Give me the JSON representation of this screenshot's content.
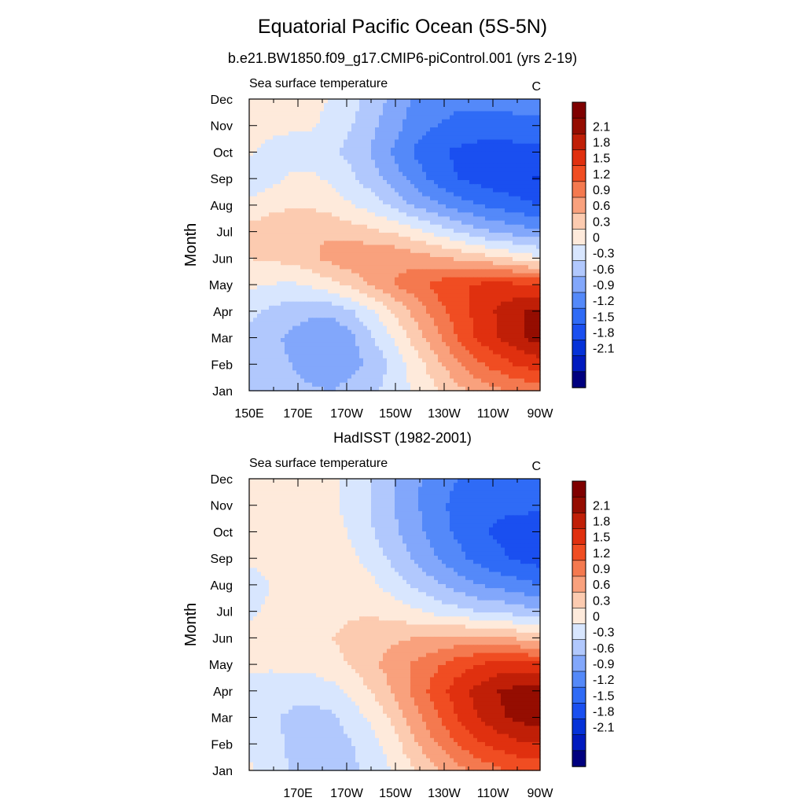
{
  "figure": {
    "title": "Equatorial Pacific Ocean (5S-5N)"
  },
  "palette": [
    "#00007f",
    "#001bbf",
    "#0532d8",
    "#1a4ff0",
    "#2f6bf6",
    "#5489f9",
    "#82a7fb",
    "#b1c8fd",
    "#d8e6fe",
    "#feeadb",
    "#fccbb0",
    "#f9a17d",
    "#f4794f",
    "#f04d22",
    "#e0300f",
    "#c01f07",
    "#950d01",
    "#7f0000"
  ],
  "chart_data": [
    {
      "type": "heatmap",
      "panel_title": "b.e21.BW1850.f09_g17.CMIP6-piControl.001 (yrs 2-19)",
      "left_string": "Sea surface temperature",
      "right_string": "C",
      "ylabel": "Month",
      "x_ticks": [
        "150E",
        "170E",
        "170W",
        "150W",
        "130W",
        "110W",
        "90W"
      ],
      "y_ticks": [
        "Jan",
        "Feb",
        "Mar",
        "Apr",
        "May",
        "Jun",
        "Jul",
        "Aug",
        "Sep",
        "Oct",
        "Nov",
        "Dec"
      ],
      "colorbar_labels": [
        "2.1",
        "1.8",
        "1.5",
        "1.2",
        "0.9",
        "0.6",
        "0.3",
        "0",
        "-0.3",
        "-0.6",
        "-0.9",
        "-1.2",
        "-1.5",
        "-1.8",
        "-2.1"
      ],
      "x_range": [
        "150E",
        "90W"
      ],
      "y_range": [
        "Jan",
        "Dec"
      ],
      "grid": [
        [
          -0.4,
          -0.5,
          -0.5,
          -0.55,
          -0.6,
          -0.45,
          -0.35,
          -0.15,
          0.05,
          0.25,
          0.5,
          0.7,
          0.85,
          0.95,
          1.05
        ],
        [
          -0.4,
          -0.5,
          -0.6,
          -0.75,
          -0.85,
          -0.7,
          -0.5,
          -0.2,
          0.15,
          0.5,
          0.85,
          1.15,
          1.35,
          1.55,
          1.65
        ],
        [
          -0.45,
          -0.55,
          -0.65,
          -0.85,
          -0.9,
          -0.65,
          -0.3,
          0.05,
          0.45,
          0.8,
          1.2,
          1.55,
          1.8,
          2.05,
          2.25
        ],
        [
          -0.2,
          -0.35,
          -0.45,
          -0.5,
          -0.5,
          -0.3,
          0.0,
          0.35,
          0.7,
          1.05,
          1.35,
          1.6,
          1.85,
          2.05,
          2.2
        ],
        [
          0.05,
          0.0,
          -0.05,
          0.05,
          0.2,
          0.4,
          0.65,
          0.9,
          1.1,
          1.3,
          1.45,
          1.55,
          1.6,
          1.55,
          1.5
        ],
        [
          0.3,
          0.35,
          0.4,
          0.55,
          0.7,
          0.85,
          0.9,
          0.85,
          0.75,
          0.65,
          0.55,
          0.45,
          0.35,
          0.2,
          0.05
        ],
        [
          0.4,
          0.5,
          0.6,
          0.6,
          0.55,
          0.45,
          0.35,
          0.25,
          0.1,
          -0.1,
          -0.3,
          -0.5,
          -0.65,
          -0.75,
          -0.85
        ],
        [
          0.1,
          0.2,
          0.25,
          0.25,
          0.15,
          0.0,
          -0.15,
          -0.4,
          -0.65,
          -0.85,
          -1.05,
          -1.2,
          -1.3,
          -1.4,
          -1.5
        ],
        [
          -0.3,
          -0.1,
          0.05,
          0.05,
          -0.05,
          -0.25,
          -0.5,
          -0.75,
          -1.05,
          -1.3,
          -1.5,
          -1.6,
          -1.7,
          -1.75,
          -1.85
        ],
        [
          0.05,
          -0.1,
          -0.15,
          -0.15,
          -0.25,
          -0.4,
          -0.65,
          -0.95,
          -1.25,
          -1.45,
          -1.55,
          -1.6,
          -1.65,
          -1.6,
          -1.6
        ],
        [
          0.1,
          0.1,
          0.05,
          0.05,
          -0.15,
          -0.3,
          -0.55,
          -0.8,
          -1.05,
          -1.2,
          -1.3,
          -1.35,
          -1.35,
          -1.3,
          -1.3
        ],
        [
          0.1,
          0.15,
          0.15,
          0.15,
          -0.05,
          -0.2,
          -0.45,
          -0.7,
          -0.95,
          -1.05,
          -1.1,
          -1.1,
          -1.1,
          -1.05,
          -1.0
        ]
      ]
    },
    {
      "type": "heatmap",
      "panel_title": "HadISST (1982-2001)",
      "left_string": "Sea surface temperature",
      "right_string": "C",
      "ylabel": "Month",
      "x_ticks": [
        "170E",
        "170W",
        "150W",
        "130W",
        "110W",
        "90W"
      ],
      "y_ticks": [
        "Jan",
        "Feb",
        "Mar",
        "Apr",
        "May",
        "Jun",
        "Jul",
        "Aug",
        "Sep",
        "Oct",
        "Nov",
        "Dec"
      ],
      "colorbar_labels": [
        "2.1",
        "1.8",
        "1.5",
        "1.2",
        "0.9",
        "0.6",
        "0.3",
        "0",
        "-0.3",
        "-0.6",
        "-0.9",
        "-1.2",
        "-1.5",
        "-1.8",
        "-2.1"
      ],
      "x_range": [
        "150E",
        "90W"
      ],
      "y_range": [
        "Jan",
        "Dec"
      ],
      "grid": [
        [
          0.05,
          -0.2,
          -0.3,
          -0.4,
          -0.45,
          -0.35,
          -0.2,
          0.05,
          0.3,
          0.55,
          0.8,
          1.0,
          1.15,
          1.25,
          1.3
        ],
        [
          -0.05,
          -0.2,
          -0.35,
          -0.45,
          -0.45,
          -0.3,
          -0.1,
          0.2,
          0.55,
          0.9,
          1.2,
          1.45,
          1.6,
          1.75,
          1.8
        ],
        [
          -0.1,
          -0.25,
          -0.35,
          -0.4,
          -0.35,
          -0.15,
          0.1,
          0.4,
          0.8,
          1.15,
          1.5,
          1.8,
          2.05,
          2.2,
          2.25
        ],
        [
          -0.1,
          -0.15,
          -0.2,
          -0.2,
          -0.1,
          0.1,
          0.35,
          0.65,
          1.0,
          1.35,
          1.65,
          1.9,
          2.1,
          2.2,
          2.2
        ],
        [
          0.05,
          0.05,
          0.1,
          0.1,
          0.2,
          0.35,
          0.55,
          0.75,
          0.95,
          1.15,
          1.35,
          1.5,
          1.6,
          1.6,
          1.55
        ],
        [
          0.05,
          0.15,
          0.2,
          0.25,
          0.3,
          0.4,
          0.5,
          0.55,
          0.6,
          0.65,
          0.7,
          0.7,
          0.65,
          0.55,
          0.45
        ],
        [
          -0.05,
          0.05,
          0.1,
          0.15,
          0.2,
          0.25,
          0.25,
          0.15,
          0.05,
          -0.1,
          -0.2,
          -0.3,
          -0.35,
          -0.45,
          -0.55
        ],
        [
          -0.15,
          0.0,
          0.15,
          0.2,
          0.2,
          0.15,
          0.05,
          -0.15,
          -0.35,
          -0.55,
          -0.75,
          -0.9,
          -1.0,
          -1.1,
          -1.2
        ],
        [
          0.05,
          0.15,
          0.25,
          0.3,
          0.25,
          0.05,
          -0.15,
          -0.4,
          -0.65,
          -0.9,
          -1.1,
          -1.3,
          -1.45,
          -1.55,
          -1.65
        ],
        [
          0.1,
          0.15,
          0.2,
          0.2,
          0.1,
          -0.05,
          -0.3,
          -0.55,
          -0.8,
          -1.05,
          -1.25,
          -1.45,
          -1.55,
          -1.6,
          -1.65
        ],
        [
          0.15,
          0.2,
          0.2,
          0.15,
          0.05,
          -0.1,
          -0.35,
          -0.6,
          -0.85,
          -1.1,
          -1.3,
          -1.4,
          -1.45,
          -1.45,
          -1.45
        ],
        [
          0.15,
          0.2,
          0.2,
          0.15,
          0.05,
          -0.1,
          -0.35,
          -0.6,
          -0.85,
          -1.05,
          -1.2,
          -1.3,
          -1.35,
          -1.35,
          -1.35
        ]
      ]
    }
  ]
}
